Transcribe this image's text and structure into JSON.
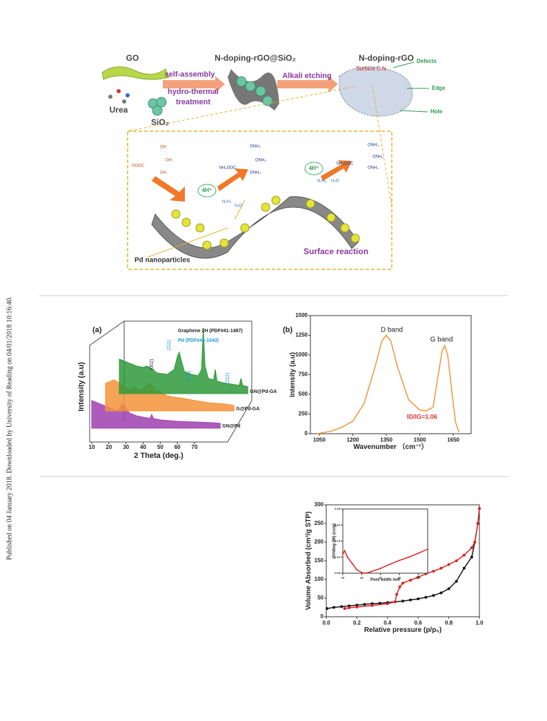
{
  "side_note": "Published on 04 January 2018. Downloaded by University of Reading on 04/01/2018 10:16:40.",
  "scheme": {
    "go": "GO",
    "urea": "Urea",
    "sio2": "SiO₂",
    "intermediate": "N-doping-rGO@SiO₂",
    "step1_a": "self-assembly",
    "step1_b": "hydro-thermal",
    "step1_c": "treatment",
    "step2": "Alkali etching",
    "product": "N-doping-rGO",
    "surface": "Surface C.N",
    "defects": "Defects",
    "edge": "Edge",
    "hole": "Hole",
    "proton_1": "4H⁺",
    "proton_2": "4H⁺",
    "hooc": "HOOC",
    "oh_1": "OH",
    "oh_2": "OH",
    "oh_3": "OH",
    "nh4ooc_1": "NH₄OOC",
    "onh4_1": "ONH₄",
    "onh4_2": "ONH₄",
    "onh4_3": "ONH₄",
    "nh4ooc_2": "NH₄OOC",
    "onh4_4": "ONH₄",
    "onh4_5": "ONH₄",
    "onh4_6": "ONH₄",
    "n2h4_1": "N₂H₄",
    "h2o_1": "H₂O",
    "n2h4_2": "N₂H₄",
    "h2o_2": "H₂O",
    "pd": "Pd nanoparticles",
    "reaction": "Surface reaction"
  },
  "chart_data": [
    {
      "type": "area",
      "panel": "(a)",
      "xlabel": "2 Theta (deg.)",
      "ylabel": "Intensity (a.u)",
      "xlim": [
        10,
        85
      ],
      "xticks": [
        10,
        20,
        30,
        40,
        50,
        60,
        70
      ],
      "ylim": [
        0,
        100
      ],
      "legend": [
        "Graphene 2H  (PDF#41-1487)",
        "Pd  (PDF#46-1043)"
      ],
      "annotations": [
        "(002)",
        "(111)",
        "(200)",
        "(222)"
      ],
      "series": [
        {
          "name": "GN@Pd",
          "color": "#a040b0",
          "x": [
            10,
            15,
            20,
            25,
            28,
            32,
            36,
            40,
            44,
            45,
            46,
            50,
            60,
            70,
            80,
            85
          ],
          "values": [
            40,
            35,
            30,
            25,
            35,
            22,
            18,
            16,
            14,
            20,
            14,
            12,
            10,
            9,
            8,
            7
          ]
        },
        {
          "name": "G@Pd-GA",
          "color": "#f5933a",
          "x": [
            10,
            15,
            20,
            24,
            26,
            30,
            36,
            40,
            44,
            46,
            50,
            56,
            60,
            65,
            70,
            80,
            85
          ],
          "values": [
            40,
            45,
            38,
            30,
            35,
            30,
            40,
            30,
            25,
            22,
            20,
            18,
            16,
            14,
            12,
            10,
            8
          ]
        },
        {
          "name": "GN@Pd-GA",
          "color": "#2e9a3a",
          "x": [
            10,
            15,
            20,
            24,
            26,
            28,
            32,
            38,
            42,
            44,
            45,
            46,
            48,
            52,
            56,
            58,
            59,
            60,
            62,
            65,
            66,
            67,
            70,
            75,
            80,
            81,
            82,
            85
          ],
          "values": [
            50,
            45,
            40,
            38,
            40,
            38,
            30,
            28,
            35,
            55,
            60,
            50,
            32,
            28,
            26,
            35,
            95,
            40,
            22,
            20,
            35,
            18,
            16,
            14,
            12,
            22,
            12,
            10
          ]
        }
      ]
    },
    {
      "type": "line",
      "panel": "(b)",
      "xlabel": "Wavenumber （cm⁻¹）",
      "ylabel": "Intensity (a.u)",
      "xlim": [
        1010,
        1730
      ],
      "xticks": [
        1050,
        1200,
        1350,
        1500,
        1650
      ],
      "ylim": [
        0,
        1500
      ],
      "yticks": [
        0,
        250,
        500,
        750,
        1000,
        1250,
        1500
      ],
      "annotations": [
        "D band",
        "G band",
        "ID/IG=1.06"
      ],
      "series": [
        {
          "color": "#f5933a",
          "x": [
            1040,
            1100,
            1150,
            1200,
            1250,
            1300,
            1330,
            1350,
            1370,
            1400,
            1450,
            1500,
            1530,
            1560,
            1580,
            1600,
            1612,
            1625,
            1645,
            1660,
            1675
          ],
          "values": [
            0,
            30,
            80,
            160,
            380,
            850,
            1180,
            1250,
            1180,
            850,
            430,
            300,
            290,
            340,
            700,
            1050,
            1120,
            1000,
            500,
            150,
            20
          ]
        }
      ]
    },
    {
      "type": "line",
      "markers": true,
      "xlabel": "Relative pressure (p/p₀)",
      "ylabel": "Volume Absorbed (cm³/g STP)",
      "xlim": [
        0,
        1
      ],
      "xticks": [
        {
          "value": 0,
          "label": "0.0"
        },
        {
          "value": 0.2,
          "label": "0.2"
        },
        {
          "value": 0.4,
          "label": "0.4"
        },
        {
          "value": 0.6,
          "label": "0.6"
        },
        {
          "value": 0.8,
          "label": "0.8"
        },
        {
          "value": 1,
          "label": "1.0"
        }
      ],
      "ylim": [
        0,
        300
      ],
      "yticks": [
        0,
        50,
        100,
        150,
        200,
        250,
        300
      ],
      "series": [
        {
          "color": "#111111",
          "x": [
            0.005,
            0.05,
            0.1,
            0.15,
            0.2,
            0.25,
            0.3,
            0.35,
            0.4,
            0.45,
            0.5,
            0.55,
            0.6,
            0.65,
            0.7,
            0.75,
            0.8,
            0.85,
            0.9,
            0.95,
            0.97,
            0.99,
            1.0
          ],
          "values": [
            22,
            25,
            27,
            29,
            31,
            33,
            35,
            36,
            38,
            40,
            42,
            45,
            48,
            52,
            57,
            64,
            75,
            95,
            130,
            160,
            200,
            250,
            290
          ]
        },
        {
          "color": "#e02020",
          "x": [
            1.0,
            0.99,
            0.97,
            0.95,
            0.9,
            0.85,
            0.8,
            0.75,
            0.7,
            0.65,
            0.6,
            0.55,
            0.5,
            0.48,
            0.46,
            0.45,
            0.4,
            0.3,
            0.2,
            0.15,
            0.12
          ],
          "values": [
            290,
            250,
            200,
            185,
            165,
            150,
            140,
            130,
            122,
            115,
            106,
            98,
            90,
            80,
            60,
            40,
            35,
            30,
            26,
            24,
            22
          ]
        }
      ]
    },
    {
      "type": "line",
      "markers": true,
      "xlabel": "Pore width /nm",
      "ylabel": "dV/dlog (W) (cc/g)",
      "xlim": [
        20,
        110
      ],
      "xticks": [
        20,
        40,
        60,
        80,
        100
      ],
      "ylim": [
        0.05,
        0.25
      ],
      "yticks": [
        {
          "value": 0.05,
          "label": "0.05"
        },
        {
          "value": 0.1,
          "label": "0.10"
        },
        {
          "value": 0.15,
          "label": "0.15"
        },
        {
          "value": 0.2,
          "label": "0.20"
        },
        {
          "value": 0.25,
          "label": "0.25"
        }
      ],
      "series": [
        {
          "color": "#e02020",
          "x": [
            20,
            22,
            25,
            30,
            35,
            40,
            45,
            50,
            60,
            70,
            80,
            90,
            100,
            110
          ],
          "values": [
            0.11,
            0.12,
            0.1,
            0.08,
            0.06,
            0.052,
            0.05,
            0.055,
            0.065,
            0.078,
            0.09,
            0.1,
            0.112,
            0.125
          ]
        }
      ]
    }
  ]
}
